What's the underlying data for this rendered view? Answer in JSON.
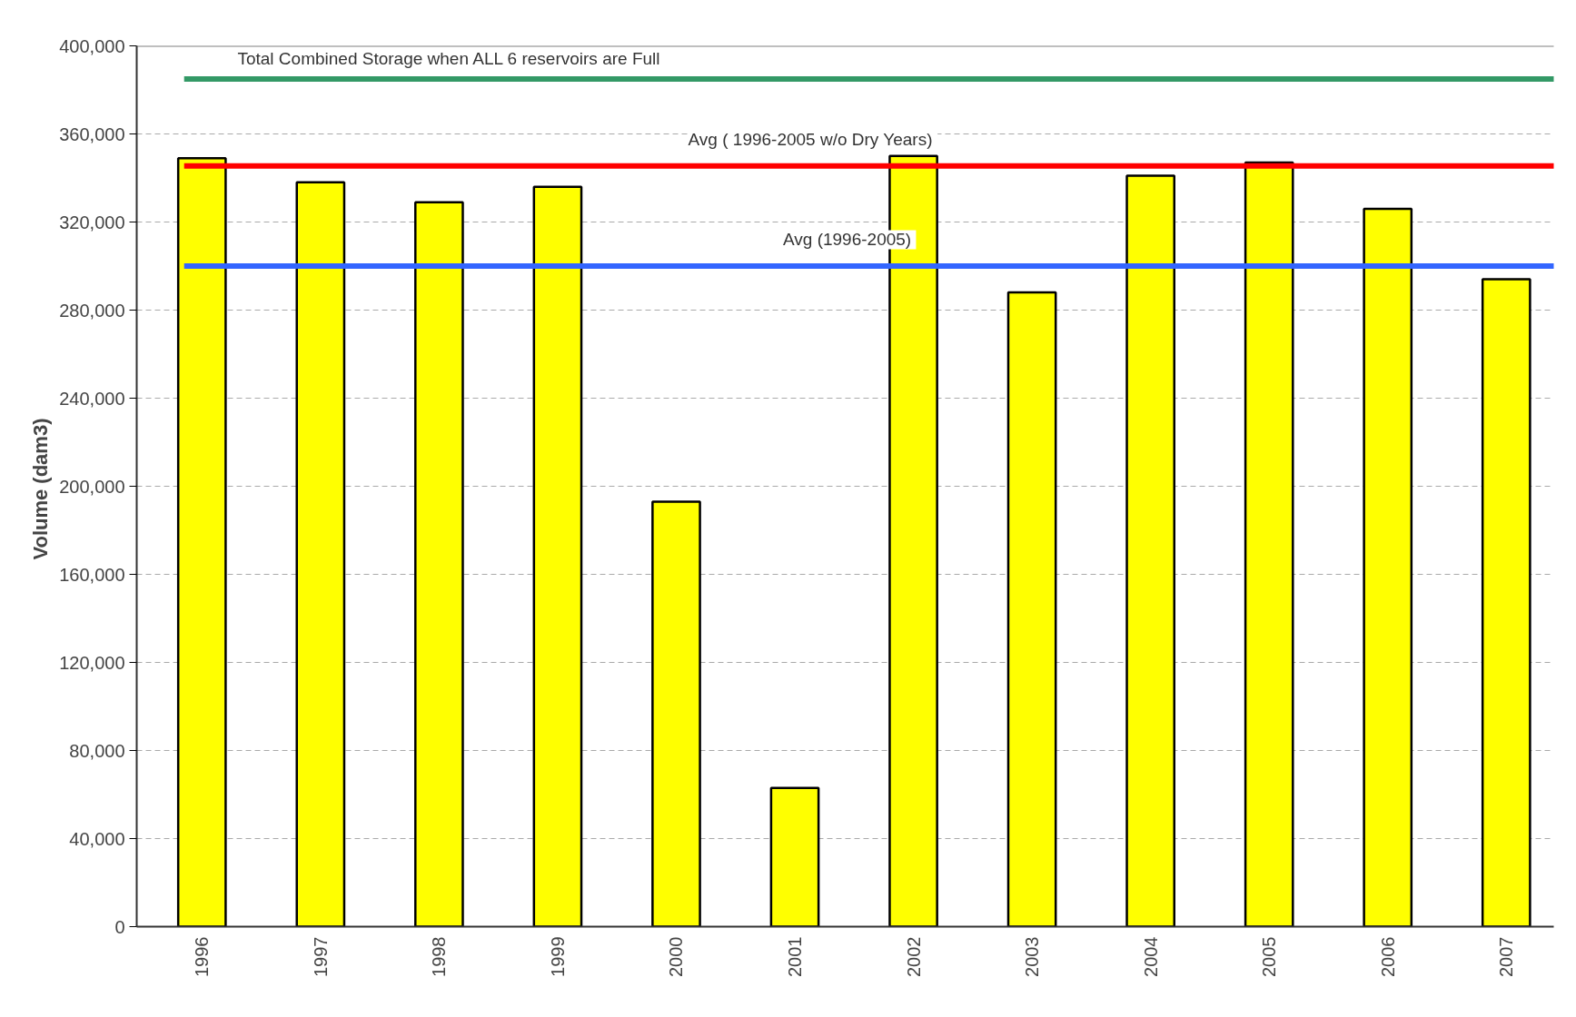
{
  "chart_data": {
    "type": "bar",
    "ylabel": "Volume  (dam3)",
    "categories": [
      "1996",
      "1997",
      "1998",
      "1999",
      "2000",
      "2001",
      "2002",
      "2003",
      "2004",
      "2005",
      "2006",
      "2007"
    ],
    "values": [
      349000,
      338000,
      329000,
      336000,
      193000,
      63000,
      350000,
      288000,
      341000,
      347000,
      326000,
      294000
    ],
    "color": "#ffff00",
    "ylim": [
      0,
      400000
    ],
    "yticks": [
      {
        "value": 0,
        "label": "0"
      },
      {
        "value": 40000,
        "label": "40,000"
      },
      {
        "value": 80000,
        "label": "80,000"
      },
      {
        "value": 120000,
        "label": "120,000"
      },
      {
        "value": 160000,
        "label": "160,000"
      },
      {
        "value": 200000,
        "label": "200,000"
      },
      {
        "value": 240000,
        "label": "240,000"
      },
      {
        "value": 280000,
        "label": "280,000"
      },
      {
        "value": 320000,
        "label": "320,000"
      },
      {
        "value": 360000,
        "label": "360,000"
      },
      {
        "value": 400000,
        "label": "400,000"
      }
    ],
    "grid": "y",
    "ref_lines": [
      {
        "axis": "y",
        "value": 400000,
        "label": "Total Combined Storage when ALL 6 reservoirs are Full",
        "color": "#808080"
      },
      {
        "axis": "y",
        "value": 385000,
        "label": null,
        "color": "#339966"
      },
      {
        "axis": "y",
        "value": 345500,
        "label": "Avg  ( 1996-2005 w/o Dry Years)",
        "color": "#ff0000"
      },
      {
        "axis": "y",
        "value": 300000,
        "label": "Avg  (1996-2005)",
        "color": "#3366ff"
      }
    ]
  }
}
